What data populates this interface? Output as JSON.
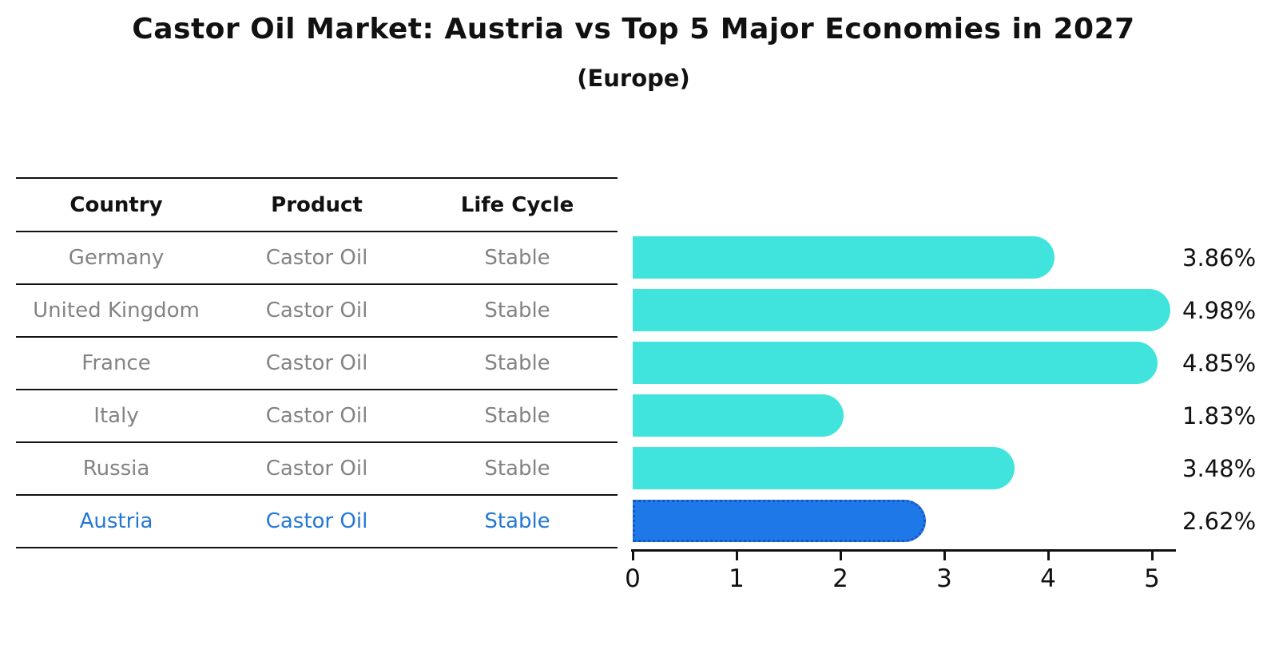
{
  "title": "Castor Oil Market: Austria vs Top 5 Major Economies in 2027",
  "subtitle": "(Europe)",
  "table": {
    "headers": [
      "Country",
      "Product",
      "Life Cycle"
    ],
    "rows": [
      {
        "country": "Germany",
        "product": "Castor Oil",
        "life_cycle": "Stable",
        "highlighted": false
      },
      {
        "country": "United Kingdom",
        "product": "Castor Oil",
        "life_cycle": "Stable",
        "highlighted": false
      },
      {
        "country": "France",
        "product": "Castor Oil",
        "life_cycle": "Stable",
        "highlighted": false
      },
      {
        "country": "Italy",
        "product": "Castor Oil",
        "life_cycle": "Stable",
        "highlighted": false
      },
      {
        "country": "Russia",
        "product": "Castor Oil",
        "life_cycle": "Stable",
        "highlighted": false
      },
      {
        "country": "Austria",
        "product": "Castor Oil",
        "life_cycle": "Stable",
        "highlighted": true
      }
    ]
  },
  "chart_data": {
    "type": "bar",
    "orientation": "horizontal",
    "title": "Castor Oil Market: Austria vs Top 5 Major Economies in 2027",
    "subtitle": "(Europe)",
    "categories": [
      "Germany",
      "United Kingdom",
      "France",
      "Italy",
      "Russia",
      "Austria"
    ],
    "values": [
      3.86,
      4.98,
      4.85,
      1.83,
      3.48,
      2.62
    ],
    "value_labels": [
      "3.86%",
      "4.98%",
      "4.85%",
      "1.83%",
      "3.48%",
      "2.62%"
    ],
    "x_ticks": [
      0,
      1,
      2,
      3,
      4,
      5
    ],
    "xlim": [
      0,
      5.2
    ],
    "grid": false,
    "legend": "none",
    "highlight_index": 5,
    "colors": {
      "bar": "#40e4dc",
      "highlight_bar": "#1e78e8",
      "highlight_bar_border": "#1558c0",
      "highlight_text": "#2478d4",
      "row_text": "#838383",
      "axis_text": "#111111"
    }
  }
}
